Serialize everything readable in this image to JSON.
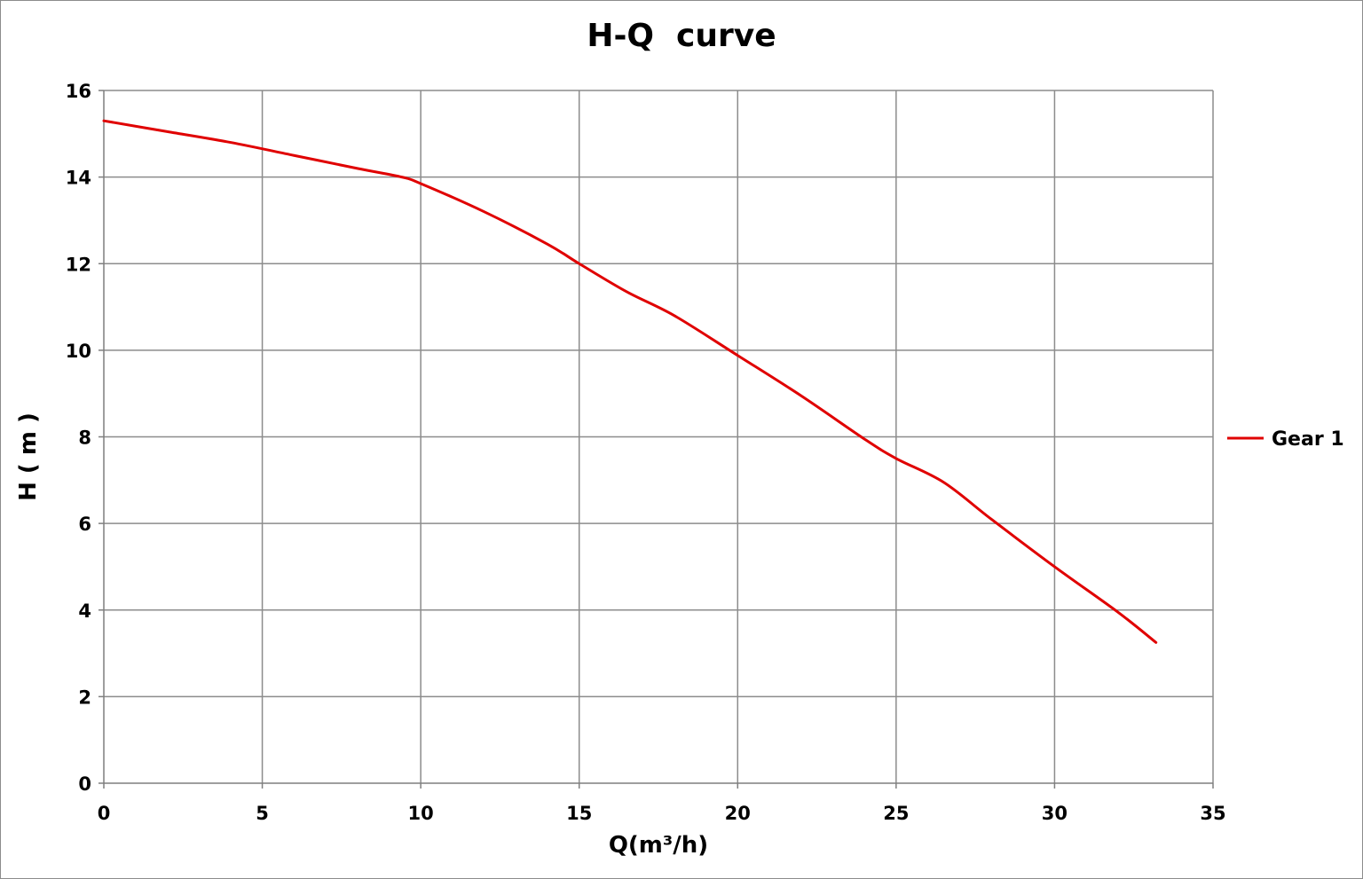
{
  "chart_data": {
    "type": "line",
    "title": "H-Q  curve",
    "xlabel": "Q(m³/h)",
    "ylabel": "H ( m )",
    "xlim": [
      0,
      35
    ],
    "ylim": [
      0,
      16
    ],
    "x_ticks": [
      "0",
      "5",
      "10",
      "15",
      "20",
      "25",
      "30",
      "35"
    ],
    "y_ticks": [
      "0",
      "2",
      "4",
      "6",
      "8",
      "10",
      "12",
      "14",
      "16"
    ],
    "grid": true,
    "legend_position": "right",
    "series": [
      {
        "name": "Gear 1",
        "color": "#e00000",
        "x": [
          0,
          2,
          4,
          6,
          8,
          9.4,
          10,
          12,
          14,
          15,
          16.5,
          18,
          20,
          22,
          24,
          25,
          26.5,
          28,
          30,
          32,
          33.2
        ],
        "y": [
          15.3,
          15.05,
          14.8,
          14.5,
          14.2,
          14.0,
          13.85,
          13.2,
          12.45,
          12.0,
          11.35,
          10.8,
          9.88,
          8.95,
          7.95,
          7.5,
          6.95,
          6.1,
          5.0,
          3.95,
          3.25
        ]
      }
    ]
  }
}
